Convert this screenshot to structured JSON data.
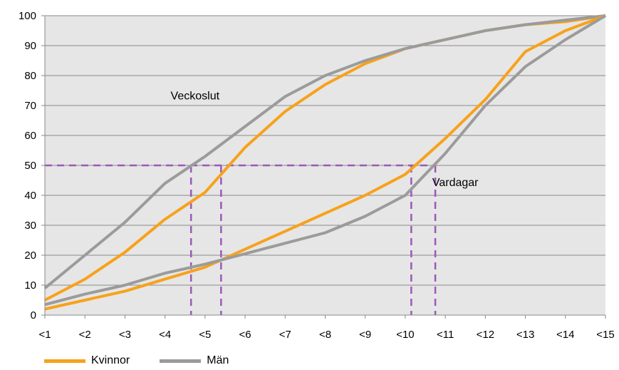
{
  "chart_data": {
    "type": "line",
    "categories": [
      "<1",
      "<2",
      "<3",
      "<4",
      "<5",
      "<6",
      "<7",
      "<8",
      "<9",
      "<10",
      "<11",
      "<12",
      "<13",
      "<14",
      "<15"
    ],
    "ylim": [
      0,
      100
    ],
    "yticks": [
      0,
      10,
      20,
      30,
      40,
      50,
      60,
      70,
      80,
      90,
      100
    ],
    "grid": true,
    "legend_position": "bottom-left",
    "series": [
      {
        "name": "Kvinnor",
        "group": "Veckoslut",
        "color": "#F7A21B",
        "values": [
          5,
          12,
          21,
          32,
          41,
          56,
          68,
          77,
          84,
          89,
          92,
          95,
          97,
          98,
          100
        ]
      },
      {
        "name": "Män",
        "group": "Veckoslut",
        "color": "#9B9B9B",
        "values": [
          9,
          20,
          31,
          44,
          53,
          63,
          73,
          80,
          85,
          89,
          92,
          95,
          97,
          98.5,
          100
        ]
      },
      {
        "name": "Kvinnor",
        "group": "Vardagar",
        "color": "#F7A21B",
        "values": [
          2,
          5,
          8,
          12,
          16,
          22,
          28,
          34,
          40,
          47,
          59,
          72,
          88,
          95,
          100
        ]
      },
      {
        "name": "Män",
        "group": "Vardagar",
        "color": "#9B9B9B",
        "values": [
          3.5,
          7,
          10,
          14,
          17,
          20.5,
          24,
          27.5,
          33,
          40,
          54,
          70,
          83,
          92,
          100
        ]
      }
    ],
    "annotations": [
      {
        "text": "Veckoslut",
        "x": 4.75,
        "y": 73.5
      },
      {
        "text": "Vardagar",
        "x": 11.25,
        "y": 44.5
      }
    ],
    "reference_lines": {
      "color": "#9B59B6",
      "y": 50,
      "x_values": [
        4.65,
        5.4,
        10.15,
        10.75
      ]
    }
  },
  "legend": {
    "items": [
      {
        "label": "Kvinnor",
        "color": "#F7A21B"
      },
      {
        "label": "Män",
        "color": "#9B9B9B"
      }
    ]
  }
}
